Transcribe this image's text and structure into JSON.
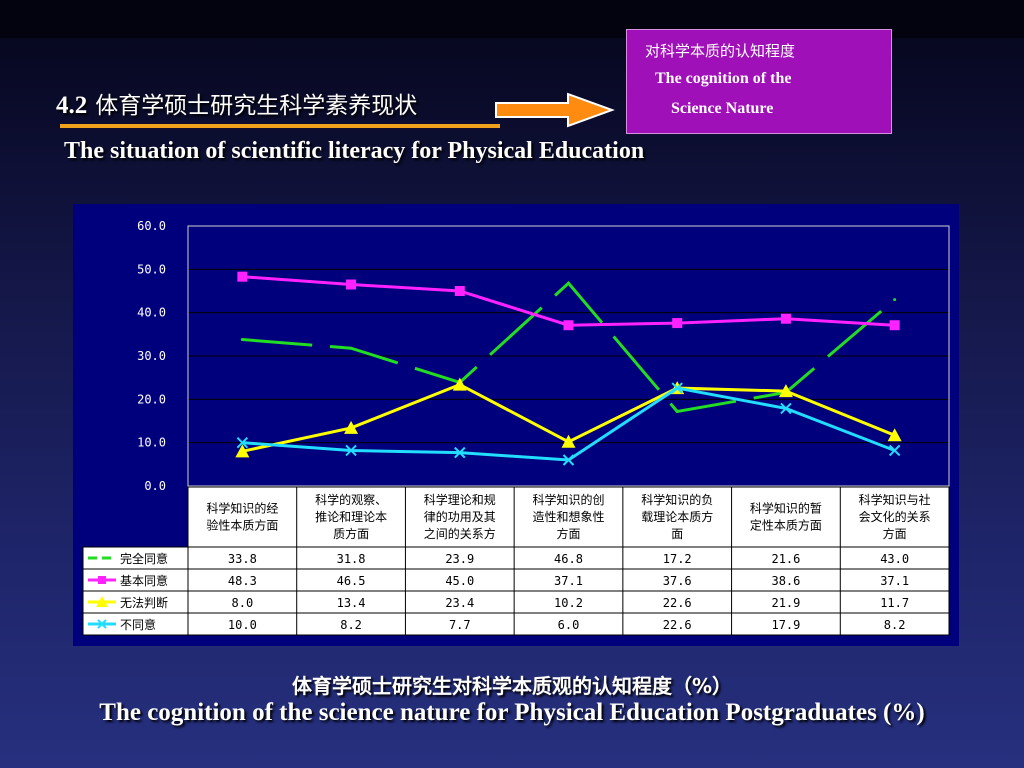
{
  "slide": {
    "heading_num": "4.2",
    "heading_zh": "体育学硕士研究生科学素养现状",
    "subtitle": "The situation of scientific literacy for Physical Education",
    "callout_zh": "对科学本质的认知程度",
    "callout_en1": "The cognition of the",
    "callout_en2": "Science Nature",
    "caption_zh": "体育学硕士研究生对科学本质观的认知程度（%）",
    "caption_en": "The cognition of the science nature for Physical Education Postgraduates (%)",
    "colors": {
      "callout_bg": "#a010b8",
      "arrow": "#ff8c10",
      "underline": "#f0a21c",
      "plot_bg": "#00007c"
    }
  },
  "chart_data": {
    "type": "line",
    "title": "",
    "xlabel": "",
    "ylabel": "",
    "ylim": [
      0,
      60
    ],
    "yticks": [
      "0.0",
      "10.0",
      "20.0",
      "30.0",
      "40.0",
      "50.0",
      "60.0"
    ],
    "grid": true,
    "legend": "data-table-left",
    "categories": [
      [
        "科学知识的经",
        "验性本质方面"
      ],
      [
        "科学的观察、",
        "推论和理论本",
        "质方面"
      ],
      [
        "科学理论和规",
        "律的功用及其",
        "之间的关系方"
      ],
      [
        "科学知识的创",
        "造性和想象性",
        "方面"
      ],
      [
        "科学知识的负",
        "载理论本质方",
        "面"
      ],
      [
        "科学知识的暂",
        "定性本质方面"
      ],
      [
        "科学知识与社",
        "会文化的关系",
        "方面"
      ]
    ],
    "series": [
      {
        "name": "完全同意",
        "color": "#22dd22",
        "dashed": true,
        "marker": "none",
        "values": [
          33.8,
          31.8,
          23.9,
          46.8,
          17.2,
          21.6,
          43.0
        ],
        "labels": [
          "33.8",
          "31.8",
          "23.9",
          "46.8",
          "17.2",
          "21.6",
          "43.0"
        ]
      },
      {
        "name": "基本同意",
        "color": "#ff22ff",
        "dashed": false,
        "marker": "square",
        "values": [
          48.3,
          46.5,
          45.0,
          37.1,
          37.6,
          38.6,
          37.1
        ],
        "labels": [
          "48.3",
          "46.5",
          "45.0",
          "37.1",
          "37.6",
          "38.6",
          "37.1"
        ]
      },
      {
        "name": "无法判断",
        "color": "#ffff00",
        "dashed": false,
        "marker": "triangle",
        "values": [
          8.0,
          13.4,
          23.4,
          10.2,
          22.6,
          21.9,
          11.7
        ],
        "labels": [
          "8.0",
          "13.4",
          "23.4",
          "10.2",
          "22.6",
          "21.9",
          "11.7"
        ]
      },
      {
        "name": "不同意",
        "color": "#22ddff",
        "dashed": false,
        "marker": "x",
        "values": [
          10.0,
          8.2,
          7.7,
          6.0,
          22.6,
          17.9,
          8.2
        ],
        "labels": [
          "10.0",
          "8.2",
          "7.7",
          "6.0",
          "22.6",
          "17.9",
          "8.2"
        ]
      }
    ]
  }
}
